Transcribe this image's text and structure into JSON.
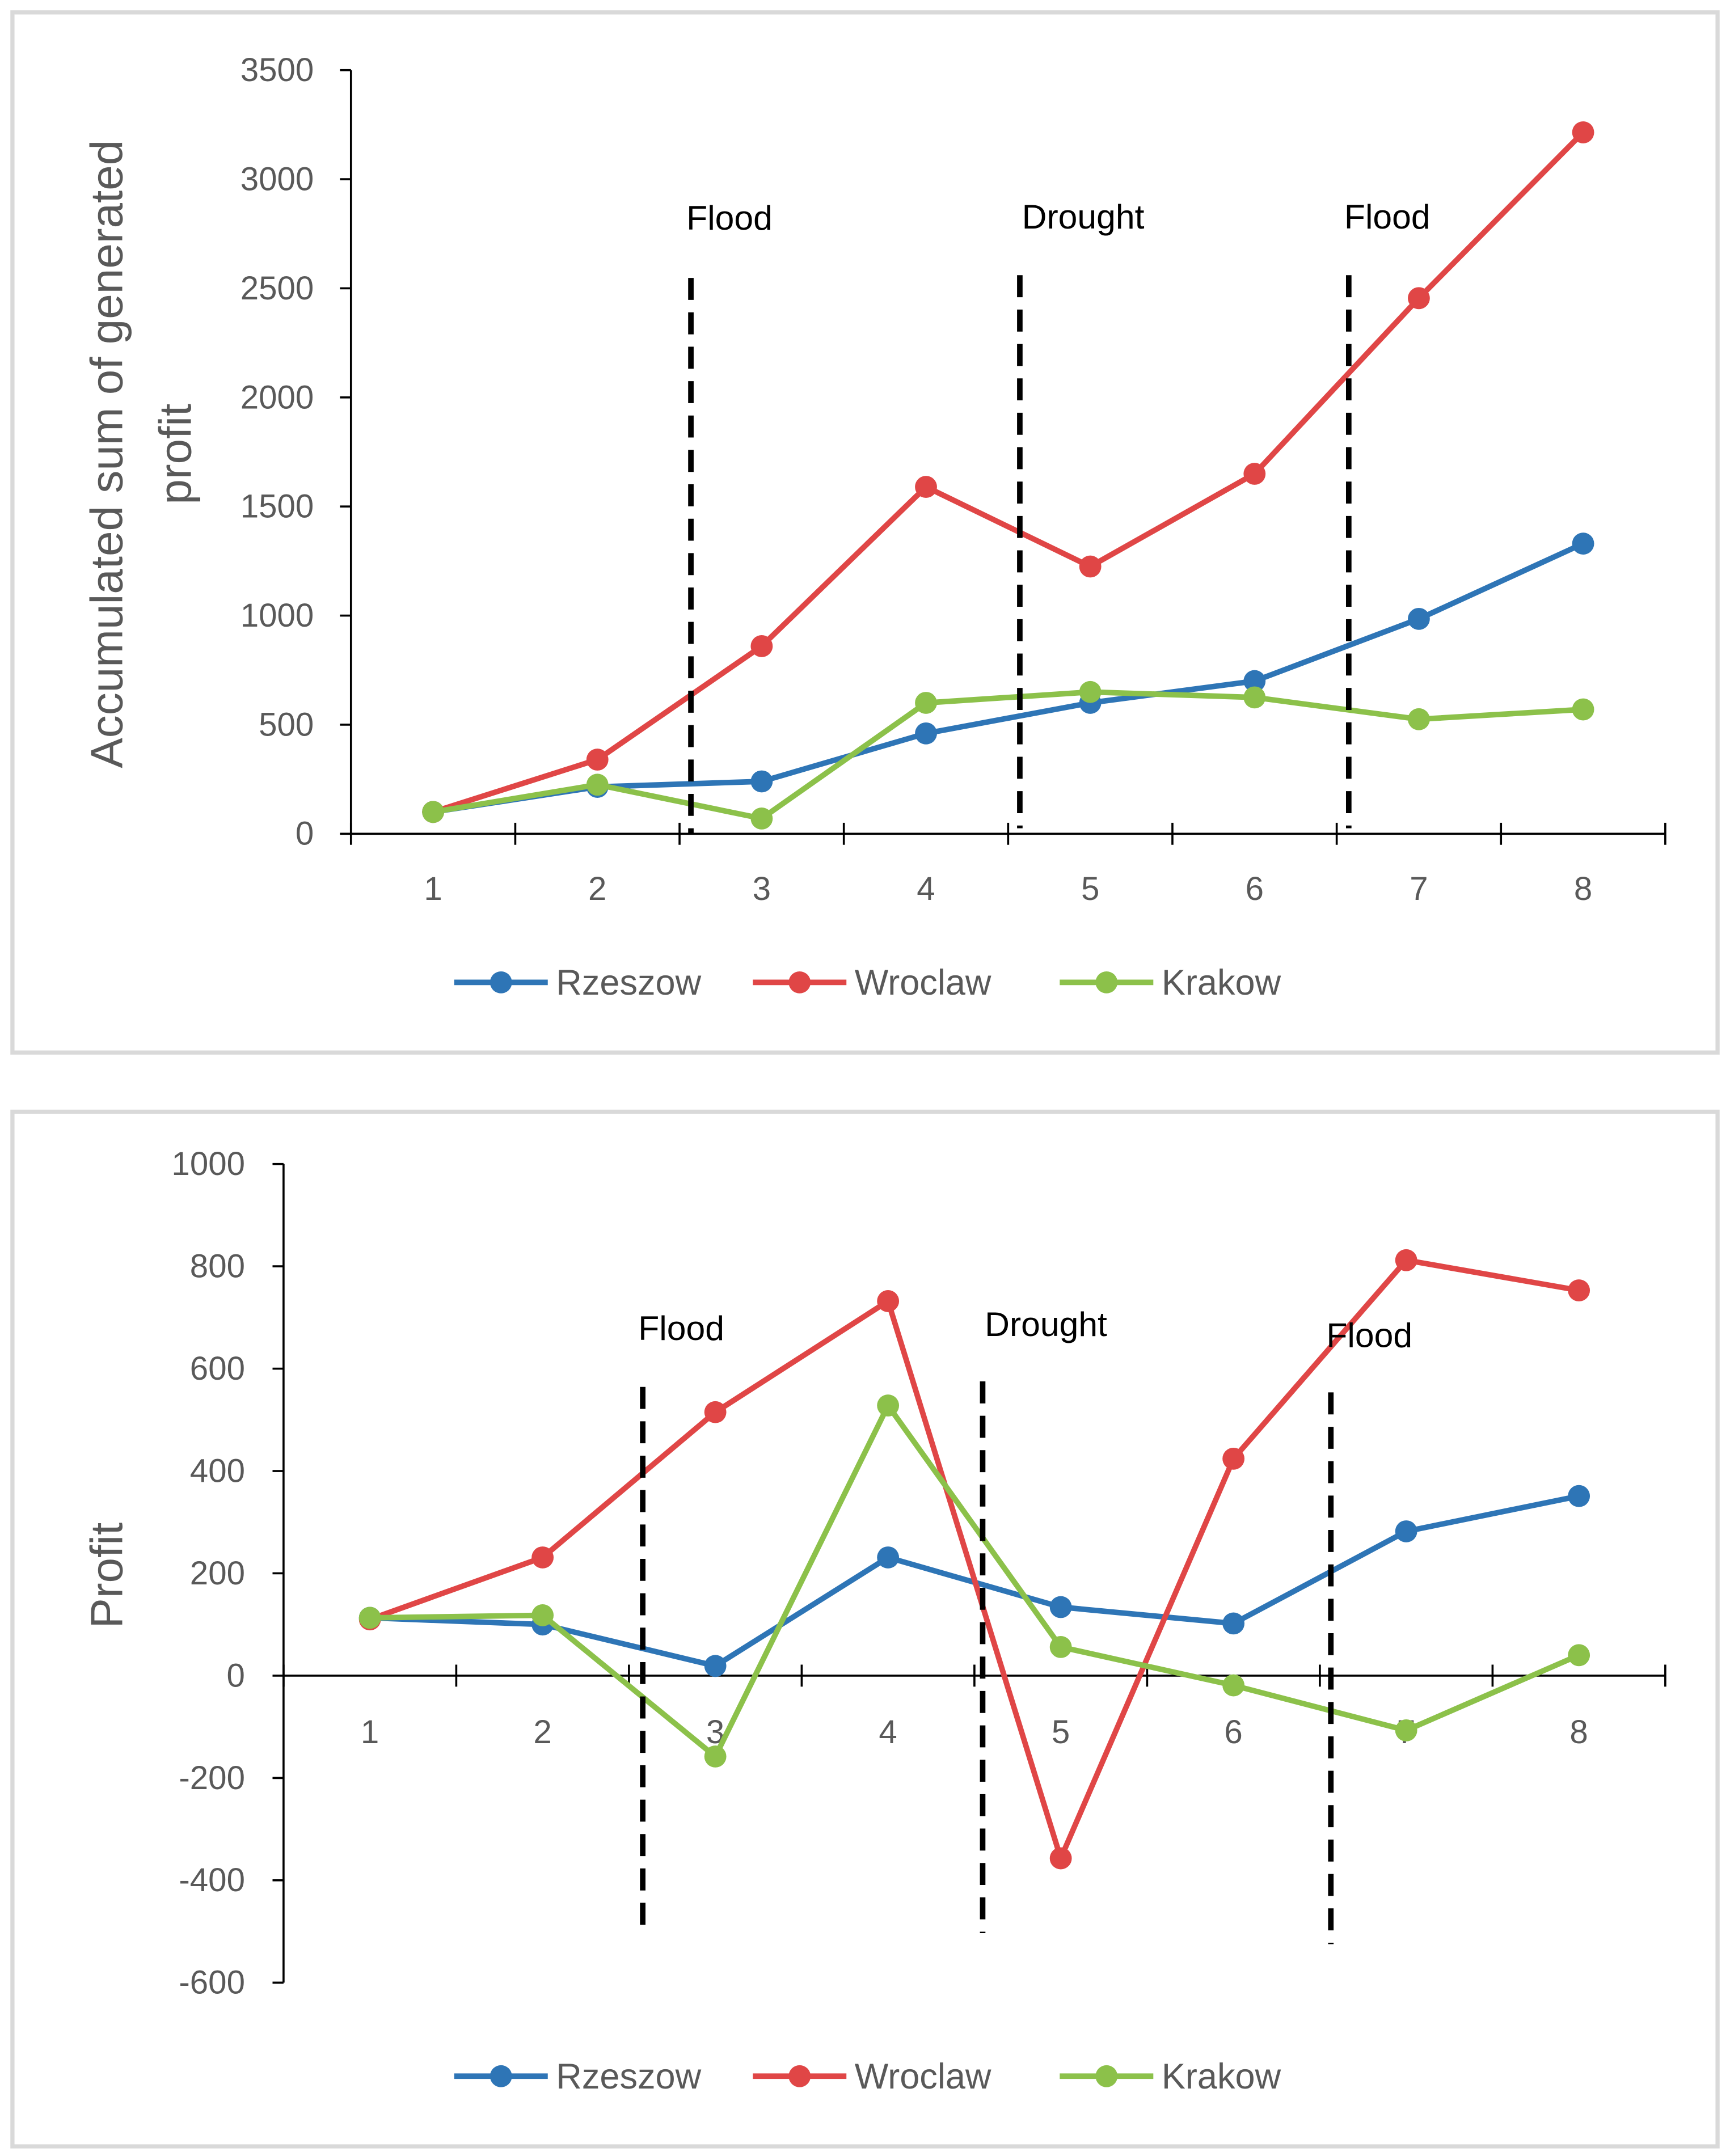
{
  "chart_data": [
    {
      "type": "line",
      "title": "",
      "xlabel": "",
      "ylabel": "Accumulated sum of generated profit",
      "ylabel_lines": [
        "Accumulated sum of generated",
        "profit"
      ],
      "categories": [
        "1",
        "2",
        "3",
        "4",
        "5",
        "6",
        "7",
        "8"
      ],
      "ylim": [
        0,
        3500
      ],
      "yticks": [
        "0",
        "500",
        "1000",
        "1500",
        "2000",
        "2500",
        "3000",
        "3500"
      ],
      "grid": false,
      "legend": "bottom",
      "series": [
        {
          "name": "Rzeszow",
          "color": "#2E75B6",
          "values": [
            100,
            215,
            240,
            460,
            600,
            700,
            985,
            1330
          ]
        },
        {
          "name": "Wroclaw",
          "color": "#E04646",
          "values": [
            100,
            340,
            860,
            1590,
            1225,
            1650,
            2455,
            3215
          ]
        },
        {
          "name": "Krakow",
          "color": "#8CC14A",
          "values": [
            100,
            225,
            70,
            600,
            650,
            625,
            525,
            570
          ]
        }
      ],
      "annotations": [
        {
          "label": "Flood",
          "between": [
            2,
            3
          ]
        },
        {
          "label": "Drought",
          "between": [
            4,
            5
          ]
        },
        {
          "label": "Flood",
          "between": [
            6,
            7
          ]
        }
      ]
    },
    {
      "type": "line",
      "title": "",
      "xlabel": "",
      "ylabel": "Profit",
      "ylabel_lines": [
        "Profit"
      ],
      "categories": [
        "1",
        "2",
        "3",
        "4",
        "5",
        "6",
        "7",
        "8"
      ],
      "ylim": [
        -600,
        1000
      ],
      "yticks": [
        "-600",
        "-400",
        "-200",
        "0",
        "200",
        "400",
        "600",
        "800",
        "1000"
      ],
      "grid": false,
      "legend": "bottom",
      "series": [
        {
          "name": "Rzeszow",
          "color": "#2E75B6",
          "values": [
            113,
            100,
            19,
            231,
            134,
            102,
            282,
            351
          ]
        },
        {
          "name": "Wroclaw",
          "color": "#E04646",
          "values": [
            110,
            231,
            515,
            732,
            -357,
            424,
            812,
            753
          ]
        },
        {
          "name": "Krakow",
          "color": "#8CC14A",
          "values": [
            113,
            118,
            -158,
            528,
            56,
            -19,
            -107,
            40
          ]
        }
      ],
      "annotations": [
        {
          "label": "Flood",
          "between": [
            2,
            3
          ]
        },
        {
          "label": "Drought",
          "between": [
            4,
            5
          ]
        },
        {
          "label": "Flood",
          "between": [
            6,
            7
          ]
        }
      ]
    }
  ]
}
